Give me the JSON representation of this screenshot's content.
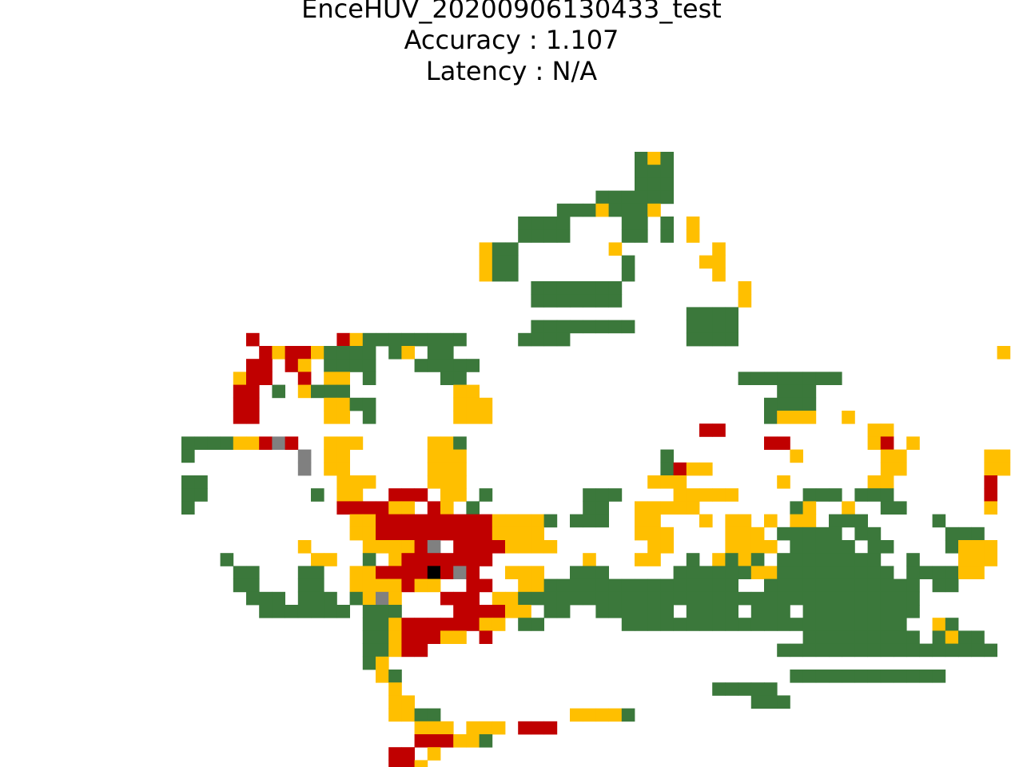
{
  "title": {
    "run_name": "EnceHUV_20200906130433_test",
    "accuracy_text": "Accuracy : 1.107",
    "latency_text": "Latency : N/A"
  },
  "chart_data": {
    "type": "heatmap",
    "title": "EnceHUV_20200906130433_test\nAccuracy : 1.107\nLatency : N/A",
    "xlabel": "",
    "ylabel": "",
    "axes_visible": false,
    "grid": false,
    "origin": [
      227,
      190
    ],
    "colors": {
      "G": "#3b783b",
      "Y": "#ffbf00",
      "R": "#c00000",
      "A": "#808080",
      "K": "#000000",
      ".": "#ffffff"
    },
    "legend": {
      "G": "green",
      "Y": "yellow",
      "R": "red",
      "A": "gray",
      "K": "black"
    },
    "rows": [
      "...................................GYG.............................",
      "...................................GGG.............................",
      "...................................GGG.............................",
      "................................GGGGGG.............................",
      ".............................GGGYGGGY.............................",
      "..........................GGGG....GG.G.Y..........................",
      "..........................GGGG....GG.G.Y..........................",
      ".......................YGG.......Y.......Y........................",
      ".......................YGG........G.....YY........................",
      ".......................YGG........G......Y........................",
      "...........................GGGGGGG.........Y......................",
      "...........................GGGGGGG.........Y......................",
      ".......................................GGGG.......................",
      "...........................GGGGGGGG....GGGG.......................",
      ".....R......RYGGGGGGGG....GGGG.........GGGG.......................",
      "......RYRRYGGGG.GY.GG..........................................Y..",
      ".....RR.RY.GGGG...GGGGG..........................................",
      "....YRR..R.YY.G.....GG.....................GGGGGGGG..............",
      "....RR.G.YGGG........YY.......................GGG................",
      "....RR.....YYGG......YYY.....................GGGG................",
      "....RR.....YY.G......YYY.....................GYYY..Y............",
      "........................................RR...........YY..........",
      "GGGGYYRAR..YYY.....YYG.......................RR......YR.Y........",
      "G........A.YY......YYY...............G.........Y......YY......YY.",
      ".........A.YY......YYY...............GRYY.............YY......YY.",
      "GG..........YYY....YYY..............YYY.......Y......YY.......R..",
      "GG........G.YY..RRR.YY.G.......GGG....YYYYY.....GGG.GGG.......R..",
      "G...........RRRRYY.RY.G........GG..YYYYY.......GY..Y..GG......Y.",
      ".............YYRRRRRRRRRYYYYG.GGG..YY...Y.YY.Y.YY.GGG.....G.......",
      ".............YYRRRRRRRRRYYYY.......YYY....YYY.GGGGG.GG.....GGG....",
      ".........Y....YYYYRA.RRRRYYYY.......YY....YYYY.GGGGG.GG....GYYY...",
      "...G......YY..G.YRRRRRRR.......Y...YY..G.YGYG.GGGGGGGG..G...YYY...",
      "....GG...GG..YYRRRRKRAR..YYY..GGG.....GGGGGGYYGGGGGGGGG.GGGGYY....",
      "....GG...GG..YYYYRYY..RR..YYGGGGGGGGGGGGGGG..GGGGGGGGGGGG.GG......",
      ".....GGG.GGG.GYAY...RRR.YYGGGGGGGGGGGGGGGGGGGGGGGGGGGGGGG.........",
      "......GGGGGGG.GGG....RRRRYY.GG..GGGGGG.GGGG.GGG.GGGGGGGGG........",
      "..............GGYRRRRRRYY.GG......GGGGGGGGGGGGGGGGGGGGGG..YG.....",
      "..............GGYRRRYY.R........................GGGGGGGGG.GYGG......",
      "..............GGYRR...........................GGGGGGGGGGGGGGGGG....",
      "..............GY..................................................",
      "...............YG..............................GGGGGGGGGGGG........",
      "................Y........................GGGGG...................",
      "................YY..........................GGG..................",
      "................YYGG..........YYYYG...............................",
      "..................YYY.YYY.RRR.....................................",
      "..................RRRYYG..........................................",
      "................RR.Y..............................................",
      "................RRY..............................................."
    ]
  }
}
